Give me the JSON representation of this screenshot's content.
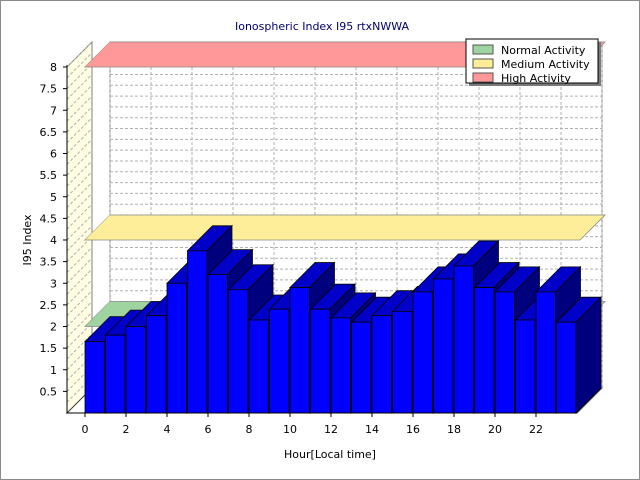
{
  "chart_data": {
    "type": "bar",
    "title": "Ionospheric Index I95 rtxNWWA",
    "xlabel": "Hour[Local time]",
    "ylabel": "I95 Index",
    "ylim": [
      0,
      8
    ],
    "y_ticks": [
      "0.5",
      "1",
      "1.5",
      "2",
      "2.5",
      "3",
      "3.5",
      "4",
      "4.5",
      "5",
      "5.5",
      "6",
      "6.5",
      "7",
      "7.5",
      "8"
    ],
    "x_ticks": [
      "0",
      "2",
      "4",
      "6",
      "8",
      "10",
      "12",
      "14",
      "16",
      "18",
      "20",
      "22"
    ],
    "hours": [
      0,
      1,
      2,
      3,
      4,
      5,
      6,
      7,
      8,
      9,
      10,
      11,
      12,
      13,
      14,
      15,
      16,
      17,
      18,
      19,
      20,
      21,
      22,
      23
    ],
    "values": [
      1.65,
      1.8,
      2.0,
      2.25,
      3.0,
      3.75,
      3.2,
      2.85,
      2.15,
      2.4,
      2.9,
      2.4,
      2.2,
      2.1,
      2.25,
      2.35,
      2.8,
      3.1,
      3.4,
      2.9,
      2.8,
      2.15,
      2.8,
      2.1
    ],
    "bar_color": "#0000ff",
    "bands": [
      {
        "name": "Normal Activity",
        "value": 2.0,
        "color": "#9fd39f"
      },
      {
        "name": "Medium Activity",
        "value": 4.0,
        "color": "#ffee99"
      },
      {
        "name": "High Activity",
        "value": 8.0,
        "color": "#ff9999"
      }
    ],
    "legend_position": "top-right",
    "grid": true
  }
}
